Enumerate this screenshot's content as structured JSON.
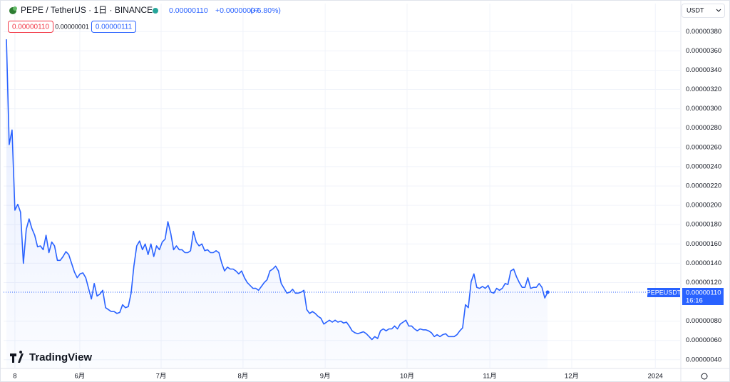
{
  "header": {
    "title": "PEPE / TetherUS · 1日 · BINANCE",
    "last": "0.00000110",
    "change": "+0.00000007",
    "change_pct": "(+6.80%)",
    "sell": "0.00000110",
    "spread": "0.00000001",
    "buy": "0.00000111",
    "currency": "USDT",
    "symbol_tag": "PEPEUSDT",
    "price_tag": "0.00000110",
    "countdown": "16:16",
    "brand": "TradingView"
  },
  "chart_data": {
    "type": "line",
    "color": "#2962ff",
    "grid": true,
    "x": [
      -3,
      -2,
      -1,
      0,
      1,
      2,
      3,
      4,
      5,
      6,
      7,
      8,
      9,
      10,
      11,
      12,
      13,
      14,
      15,
      16,
      17,
      18,
      19,
      20,
      21,
      22,
      23,
      24,
      25,
      26,
      27,
      28,
      29,
      30,
      31,
      32,
      33,
      34,
      35,
      36,
      37,
      38,
      39,
      40,
      41,
      42,
      43,
      44,
      45,
      46,
      47,
      48,
      49,
      50,
      51,
      52,
      53,
      54,
      55,
      56,
      57,
      58,
      59,
      60,
      61,
      62,
      63,
      64,
      65,
      66,
      67,
      68,
      69,
      70,
      71,
      72,
      73,
      74,
      75,
      76,
      77,
      78,
      79,
      80,
      81,
      82,
      83,
      84,
      85,
      86,
      87,
      88,
      89,
      90,
      91,
      92,
      93,
      94,
      95,
      96,
      97,
      98,
      99,
      100,
      101,
      102,
      103,
      104,
      105,
      106,
      107,
      108,
      109,
      110,
      111,
      112,
      113,
      114,
      115,
      116,
      117,
      118,
      119,
      120,
      121,
      122,
      123,
      124,
      125,
      126,
      127,
      128,
      129,
      130,
      131,
      132,
      133,
      134,
      135,
      136,
      137,
      138,
      139,
      140,
      141,
      142,
      143,
      144,
      145,
      146,
      147,
      148,
      149,
      150,
      151,
      152,
      153,
      154,
      155,
      156,
      157,
      158,
      159,
      160,
      161,
      162,
      163,
      164,
      165,
      166,
      167,
      168,
      169,
      170,
      171,
      172,
      173,
      174,
      175,
      176,
      177,
      178,
      179,
      180,
      181,
      182,
      183,
      184,
      185,
      186,
      187,
      188
    ],
    "values": [
      3.72e-06,
      2.63e-06,
      2.78e-06,
      1.95e-06,
      2.01e-06,
      1.93e-06,
      1.4e-06,
      1.75e-06,
      1.86e-06,
      1.76e-06,
      1.69e-06,
      1.57e-06,
      1.58e-06,
      1.54e-06,
      1.69e-06,
      1.51e-06,
      1.62e-06,
      1.58e-06,
      1.43e-06,
      1.43e-06,
      1.47e-06,
      1.52e-06,
      1.49e-06,
      1.4e-06,
      1.31e-06,
      1.25e-06,
      1.29e-06,
      1.3e-06,
      1.25e-06,
      1.14e-06,
      1.03e-06,
      1.19e-06,
      1.06e-06,
      1.08e-06,
      1.12e-06,
      9.4e-07,
      9.2e-07,
      9e-07,
      9e-07,
      8.8e-07,
      8.9e-07,
      9.7e-07,
      9.4e-07,
      9.5e-07,
      1.09e-06,
      1.37e-06,
      1.58e-06,
      1.63e-06,
      1.54e-06,
      1.6e-06,
      1.49e-06,
      1.6e-06,
      1.47e-06,
      1.58e-06,
      1.54e-06,
      1.62e-06,
      1.65e-06,
      1.83e-06,
      1.71e-06,
      1.54e-06,
      1.58e-06,
      1.54e-06,
      1.54e-06,
      1.51e-06,
      1.51e-06,
      1.53e-06,
      1.73e-06,
      1.62e-06,
      1.58e-06,
      1.6e-06,
      1.53e-06,
      1.54e-06,
      1.51e-06,
      1.51e-06,
      1.53e-06,
      1.51e-06,
      1.4e-06,
      1.32e-06,
      1.36e-06,
      1.34e-06,
      1.34e-06,
      1.32e-06,
      1.29e-06,
      1.32e-06,
      1.25e-06,
      1.2e-06,
      1.17e-06,
      1.14e-06,
      1.14e-06,
      1.12e-06,
      1.16e-06,
      1.2e-06,
      1.23e-06,
      1.32e-06,
      1.34e-06,
      1.37e-06,
      1.32e-06,
      1.19e-06,
      1.14e-06,
      1.09e-06,
      1.1e-06,
      1.13e-06,
      1.09e-06,
      1.09e-06,
      1.1e-06,
      1.12e-06,
      9.2e-07,
      8.8e-07,
      9e-07,
      8.8e-07,
      8.5e-07,
      8.3e-07,
      7.7e-07,
      7.9e-07,
      8.1e-07,
      7.9e-07,
      8.1e-07,
      7.9e-07,
      8e-07,
      7.8e-07,
      7.9e-07,
      7.5e-07,
      7e-07,
      6.8e-07,
      6.7e-07,
      6.8e-07,
      6.9e-07,
      6.7e-07,
      6.4e-07,
      6.1e-07,
      6.4e-07,
      6.2e-07,
      7e-07,
      7.2e-07,
      7e-07,
      7.2e-07,
      7.2e-07,
      7.5e-07,
      7.2e-07,
      7.7e-07,
      7.9e-07,
      8.1e-07,
      7.5e-07,
      7.5e-07,
      7.2e-07,
      7e-07,
      7.2e-07,
      7.1e-07,
      7.1e-07,
      7e-07,
      6.8e-07,
      6.4e-07,
      6.6e-07,
      6.4e-07,
      6.6e-07,
      6.7e-07,
      6.4e-07,
      6.4e-07,
      6.4e-07,
      6.6e-07,
      7e-07,
      7.3e-07,
      9.7e-07,
      9.4e-07,
      1.21e-06,
      1.29e-06,
      1.15e-06,
      1.14e-06,
      1.16e-06,
      1.14e-06,
      1.17e-06,
      1.1e-06,
      1.09e-06,
      1.14e-06,
      1.12e-06,
      1.14e-06,
      1.19e-06,
      1.18e-06,
      1.32e-06,
      1.34e-06,
      1.26e-06,
      1.2e-06,
      1.15e-06,
      1.15e-06,
      1.25e-06,
      1.14e-06,
      1.15e-06,
      1.15e-06,
      1.19e-06,
      1.15e-06,
      1.04e-06,
      1.1e-06
    ],
    "xlim": [
      -4,
      235
    ],
    "xticks": [
      {
        "value": 0,
        "label": "8"
      },
      {
        "value": 22.9,
        "label": "6月"
      },
      {
        "value": 51.6,
        "label": "7月"
      },
      {
        "value": 80.5,
        "label": "8月"
      },
      {
        "value": 109.5,
        "label": "9月"
      },
      {
        "value": 138.4,
        "label": "10月"
      },
      {
        "value": 167.6,
        "label": "11月"
      },
      {
        "value": 196.5,
        "label": "12月"
      },
      {
        "value": 226,
        "label": "2024"
      }
    ],
    "ylim": [
      3.1e-07,
      4.09e-06
    ],
    "yticks": [
      {
        "value": 4e-07,
        "label": "0.00000040"
      },
      {
        "value": 6e-07,
        "label": "0.00000060"
      },
      {
        "value": 8e-07,
        "label": "0.00000080"
      },
      {
        "value": 1.2e-06,
        "label": "0.00000120"
      },
      {
        "value": 1.4e-06,
        "label": "0.00000140"
      },
      {
        "value": 1.6e-06,
        "label": "0.00000160"
      },
      {
        "value": 1.8e-06,
        "label": "0.00000180"
      },
      {
        "value": 2e-06,
        "label": "0.00000200"
      },
      {
        "value": 2.2e-06,
        "label": "0.00000220"
      },
      {
        "value": 2.4e-06,
        "label": "0.00000240"
      },
      {
        "value": 2.6e-06,
        "label": "0.00000260"
      },
      {
        "value": 2.8e-06,
        "label": "0.00000280"
      },
      {
        "value": 3e-06,
        "label": "0.00000300"
      },
      {
        "value": 3.2e-06,
        "label": "0.00000320"
      },
      {
        "value": 3.4e-06,
        "label": "0.00000340"
      },
      {
        "value": 3.6e-06,
        "label": "0.00000360"
      },
      {
        "value": 3.8e-06,
        "label": "0.00000380"
      }
    ]
  }
}
